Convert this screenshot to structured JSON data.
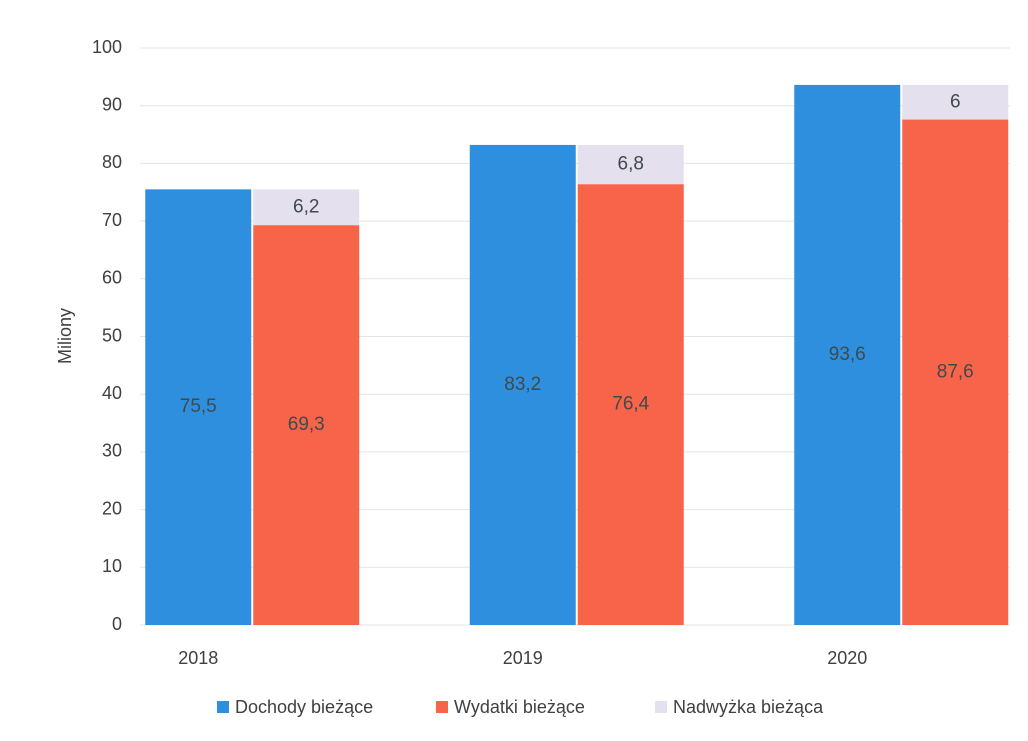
{
  "chart_data": {
    "type": "bar",
    "y_label": "Miliony",
    "categories": [
      "2018",
      "2019",
      "2020"
    ],
    "series": [
      {
        "name": "Dochody bieżące",
        "color": "#2f8fdf",
        "values": [
          75.5,
          83.2,
          93.6
        ],
        "value_labels": [
          "75,5",
          "83,2",
          "93,6"
        ]
      },
      {
        "name": "Wydatki bieżące",
        "color": "#f8644a",
        "values": [
          69.3,
          76.4,
          87.6
        ],
        "value_labels": [
          "69,3",
          "76,4",
          "87,6"
        ]
      },
      {
        "name": "Nadwyżka bieżąca",
        "color": "#e5e0ee",
        "values": [
          6.2,
          6.8,
          6
        ],
        "value_labels": [
          "6,2",
          "6,8",
          "6"
        ]
      }
    ],
    "ylim": [
      0,
      100
    ],
    "yticks": [
      0,
      10,
      20,
      30,
      40,
      50,
      60,
      70,
      80,
      90,
      100
    ],
    "grid": true,
    "legend": "bottom"
  }
}
